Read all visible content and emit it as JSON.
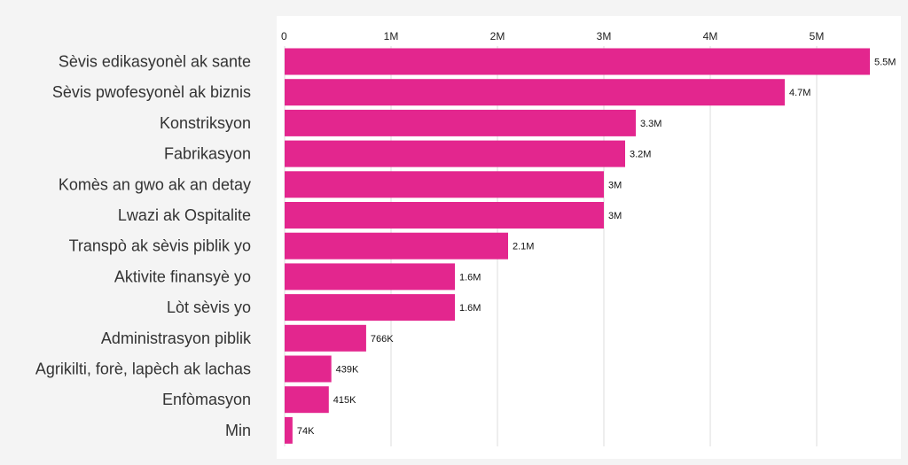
{
  "colors": {
    "bar": "#e3268e",
    "grid": "#dcdcdc",
    "category_text": "#333333",
    "tick_text": "#222222",
    "value_text": "#111111"
  },
  "chart_data": {
    "type": "bar",
    "orientation": "horizontal",
    "title": "",
    "xlabel": "",
    "ylabel": "",
    "xlim": [
      0,
      5500000
    ],
    "grid": true,
    "x_axis_position": "top",
    "ticks": [
      {
        "value": 0,
        "label": "0"
      },
      {
        "value": 1000000,
        "label": "1M"
      },
      {
        "value": 2000000,
        "label": "2M"
      },
      {
        "value": 3000000,
        "label": "3M"
      },
      {
        "value": 4000000,
        "label": "4M"
      },
      {
        "value": 5000000,
        "label": "5M"
      }
    ],
    "categories": [
      "Sèvis edikasyonèl ak sante",
      "Sèvis pwofesyonèl ak biznis",
      "Konstriksyon",
      "Fabrikasyon",
      "Komès an gwo ak an detay",
      "Lwazi ak Ospitalite",
      "Transpò ak sèvis piblik yo",
      "Aktivite finansyè yo",
      "Lòt sèvis yo",
      "Administrasyon piblik",
      "Agrikilti, forè, lapèch ak lachas",
      "Enfòmasyon",
      "Min"
    ],
    "values": [
      5500000,
      4700000,
      3300000,
      3200000,
      3000000,
      3000000,
      2100000,
      1600000,
      1600000,
      766000,
      439000,
      415000,
      74000
    ],
    "value_labels": [
      "5.5M",
      "4.7M",
      "3.3M",
      "3.2M",
      "3M",
      "3M",
      "2.1M",
      "1.6M",
      "1.6M",
      "766K",
      "439K",
      "415K",
      "74K"
    ]
  }
}
